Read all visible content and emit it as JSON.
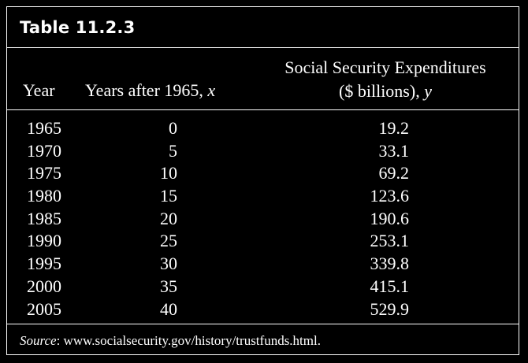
{
  "table": {
    "title": "Table 11.2.3",
    "headers": {
      "year": "Year",
      "x_text": "Years after 1965, ",
      "x_var": "x",
      "y_line1": "Social Security Expenditures",
      "y_line2_text": "($ billions), ",
      "y_var": "y"
    },
    "rows": [
      {
        "year": "1965",
        "x": "0",
        "y": "19.2"
      },
      {
        "year": "1970",
        "x": "5",
        "y": "33.1"
      },
      {
        "year": "1975",
        "x": "10",
        "y": "69.2"
      },
      {
        "year": "1980",
        "x": "15",
        "y": "123.6"
      },
      {
        "year": "1985",
        "x": "20",
        "y": "190.6"
      },
      {
        "year": "1990",
        "x": "25",
        "y": "253.1"
      },
      {
        "year": "1995",
        "x": "30",
        "y": "339.8"
      },
      {
        "year": "2000",
        "x": "35",
        "y": "415.1"
      },
      {
        "year": "2005",
        "x": "40",
        "y": "529.9"
      }
    ],
    "source_label": "Source",
    "source_text": ": www.socialsecurity.gov/history/trustfunds.html."
  }
}
